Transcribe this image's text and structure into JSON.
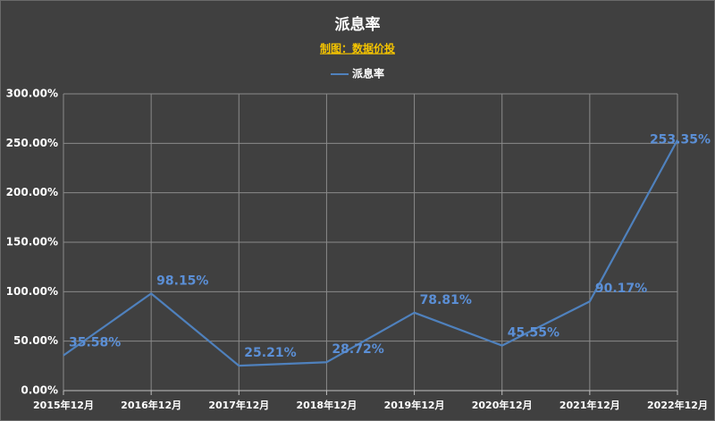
{
  "chart_data": {
    "type": "line",
    "title": "派息率",
    "subtitle": "制图：数据价投",
    "categories": [
      "2015年12月",
      "2016年12月",
      "2017年12月",
      "2018年12月",
      "2019年12月",
      "2020年12月",
      "2021年12月",
      "2022年12月"
    ],
    "series": [
      {
        "name": "派息率",
        "color": "#4f81bd",
        "values": [
          35.58,
          98.15,
          25.21,
          28.72,
          78.81,
          45.55,
          90.17,
          253.35
        ],
        "value_labels": [
          "35.58%",
          "98.15%",
          "25.21%",
          "28.72%",
          "78.81%",
          "45.55%",
          "90.17%",
          "253.35%"
        ]
      }
    ],
    "ylim": [
      0,
      300
    ],
    "yticks": [
      {
        "value": 0,
        "label": "0.00%"
      },
      {
        "value": 50,
        "label": "50.00%"
      },
      {
        "value": 100,
        "label": "100.00%"
      },
      {
        "value": 150,
        "label": "150.00%"
      },
      {
        "value": 200,
        "label": "200.00%"
      },
      {
        "value": 250,
        "label": "250.00%"
      },
      {
        "value": 300,
        "label": "300.00%"
      }
    ],
    "grid": true,
    "legend": "top"
  }
}
